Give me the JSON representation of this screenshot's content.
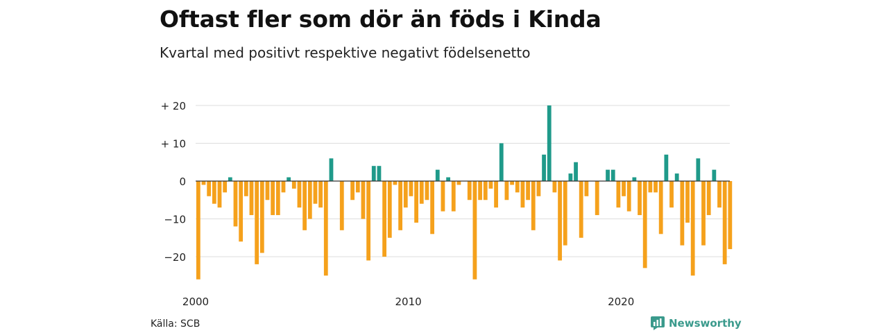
{
  "header": {
    "title": "Oftast fler som dör än föds i Kinda",
    "subtitle": "Kvartal med positivt respektive negativt födelsenetto"
  },
  "footer": {
    "source": "Källa: SCB",
    "brand": "Newsworthy",
    "brand_icon": "newsworthy-logo-icon"
  },
  "colors": {
    "positive": "#1f9a8a",
    "negative": "#f5a11c",
    "grid": "#dddddd",
    "zero_line": "#333333",
    "brand": "#3a9a8c"
  },
  "chart_data": {
    "type": "bar",
    "x_start": "2000 Q1",
    "x_tick_labels": [
      "2000",
      "2010",
      "2020"
    ],
    "y_tick_labels": [
      "+ 20",
      "+ 10",
      "0",
      "−10",
      "−20"
    ],
    "y_ticks": [
      20,
      10,
      0,
      -10,
      -20
    ],
    "ylim": [
      -26,
      20
    ],
    "grid": true,
    "values": [
      -26,
      -1,
      -4,
      -6,
      -7,
      -3,
      1,
      -12,
      -16,
      -4,
      -9,
      -22,
      -19,
      -5,
      -9,
      -9,
      -3,
      1,
      -2,
      -7,
      -13,
      -10,
      -6,
      -7,
      -25,
      6,
      0,
      -13,
      0,
      -5,
      -3,
      -10,
      -21,
      4,
      4,
      -20,
      -15,
      -1,
      -13,
      -7,
      -4,
      -11,
      -6,
      -5,
      -14,
      3,
      -8,
      1,
      -8,
      -1,
      0,
      -5,
      -26,
      -5,
      -5,
      -2,
      -7,
      10,
      -5,
      -1,
      -3,
      -7,
      -5,
      -13,
      -4,
      7,
      20,
      -3,
      -21,
      -17,
      2,
      5,
      -15,
      -4,
      0,
      -9,
      0,
      3,
      3,
      -7,
      -4,
      -8,
      1,
      -9,
      -23,
      -3,
      -3,
      -14,
      7,
      -7,
      2,
      -17,
      -11,
      -25,
      6,
      -17,
      -9,
      3,
      -7,
      -22,
      -18
    ]
  }
}
